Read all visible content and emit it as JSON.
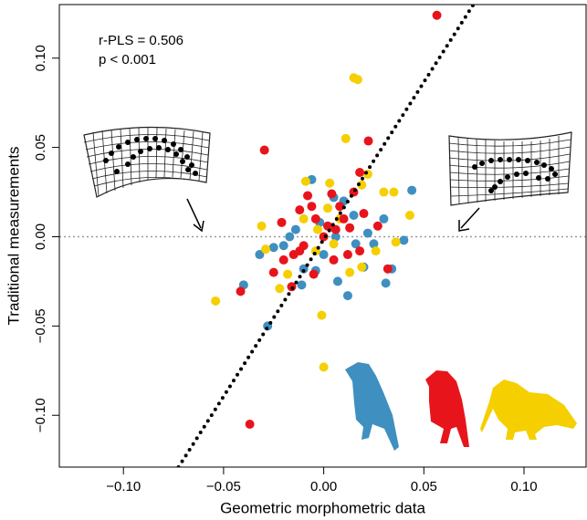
{
  "chart_data": {
    "type": "scatter",
    "xlabel": "Geometric morphometric data",
    "ylabel": "Traditional measurements",
    "annotations": [
      "r-PLS = 0.506",
      "p < 0.001"
    ],
    "xlim": [
      -0.132,
      0.131
    ],
    "ylim": [
      -0.129,
      0.13
    ],
    "xticks": [
      {
        "value": -0.1,
        "label": "−0.10"
      },
      {
        "value": -0.05,
        "label": "−0.05"
      },
      {
        "value": 0,
        "label": "0.00"
      },
      {
        "value": 0.05,
        "label": "0.05"
      },
      {
        "value": 0.1,
        "label": "0.10"
      }
    ],
    "yticks": [
      {
        "value": -0.1,
        "label": "−0.10"
      },
      {
        "value": -0.05,
        "label": "−0.05"
      },
      {
        "value": 0,
        "label": "0.00"
      },
      {
        "value": 0.05,
        "label": "0.05"
      },
      {
        "value": 0.1,
        "label": "0.10"
      }
    ],
    "reference_line": {
      "y": 0,
      "color": "#999999"
    },
    "fit_line": {
      "x": [
        -0.0725,
        0.0747
      ],
      "y": [
        -0.129,
        0.13
      ],
      "color": "#000000"
    },
    "series": [
      {
        "color": "#3f8fc1",
        "x": [
          -0.028,
          -0.032,
          -0.04,
          -0.02,
          -0.014,
          -0.01,
          -0.006,
          0.005,
          0.01,
          0.015,
          0.03,
          0.044,
          0.025,
          0.02,
          0.012,
          -0.004,
          0.0,
          0.006,
          -0.002,
          -0.017,
          -0.025,
          0.022,
          0.031,
          0.034,
          -0.011,
          0.007,
          0.016,
          0.04
        ],
        "values": [
          -0.05,
          -0.01,
          -0.027,
          -0.005,
          0.004,
          -0.018,
          0.032,
          0.022,
          0.02,
          0.012,
          0.01,
          0.026,
          -0.004,
          -0.017,
          -0.033,
          -0.019,
          -0.01,
          0.0,
          0.008,
          0.0,
          -0.006,
          0.002,
          -0.026,
          -0.018,
          -0.027,
          -0.025,
          -0.004,
          -0.002
        ]
      },
      {
        "color": "#f5cf00",
        "x": [
          0.015,
          0.017,
          -0.054,
          0.0,
          -0.001,
          0.035,
          0.043,
          0.019,
          0.022,
          0.011,
          0.003,
          -0.009,
          -0.031,
          -0.029,
          -0.022,
          -0.018,
          0.002,
          0.005,
          0.019,
          0.026,
          0.03,
          0.036,
          -0.003,
          0.008,
          -0.01,
          0.013,
          -0.004
        ],
        "values": [
          0.089,
          0.088,
          -0.036,
          -0.073,
          -0.044,
          0.025,
          0.012,
          0.029,
          0.035,
          0.055,
          0.03,
          0.031,
          0.006,
          -0.007,
          -0.029,
          -0.021,
          0.016,
          -0.004,
          -0.017,
          -0.008,
          0.025,
          -0.003,
          0.004,
          0.01,
          0.01,
          -0.02,
          -0.008
        ]
      },
      {
        "color": "#e8141c",
        "x": [
          0.0565,
          -0.0296,
          0.0223,
          -0.0415,
          -0.0369,
          0.018,
          0.015,
          0.01,
          -0.012,
          -0.004,
          0.002,
          0.006,
          -0.01,
          -0.015,
          -0.02,
          -0.025,
          -0.016,
          -0.012,
          0.005,
          0.012,
          0.02,
          0.027,
          0.018,
          -0.006,
          0.0,
          0.008,
          -0.021,
          0.032,
          -0.008,
          0.004,
          -0.005,
          0.013
        ],
        "values": [
          0.124,
          0.0485,
          0.0536,
          -0.0306,
          -0.105,
          0.036,
          0.025,
          0.01,
          0.015,
          0.01,
          0.006,
          0.004,
          -0.005,
          -0.01,
          -0.013,
          -0.02,
          -0.028,
          -0.008,
          -0.013,
          -0.01,
          0.013,
          0.006,
          -0.008,
          0.017,
          0.0,
          0.017,
          0.008,
          -0.018,
          0.023,
          0.024,
          -0.021,
          0.005
        ]
      }
    ]
  }
}
